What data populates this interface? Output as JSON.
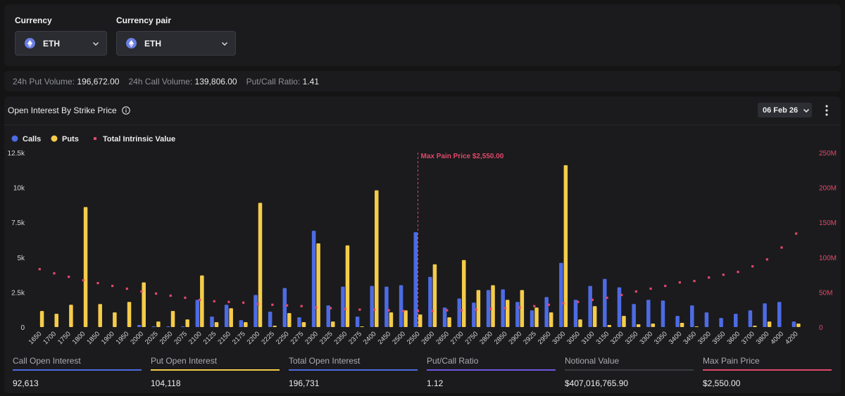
{
  "filters": {
    "currency": {
      "label": "Currency",
      "value": "ETH",
      "icon": "ethereum-icon"
    },
    "currency_pair": {
      "label": "Currency pair",
      "value": "ETH",
      "icon": "ethereum-icon"
    }
  },
  "stats": [
    {
      "label": "24h Put Volume:",
      "value": "196,672.00"
    },
    {
      "label": "24h Call Volume:",
      "value": "139,806.00"
    },
    {
      "label": "Put/Call Ratio:",
      "value": "1.41"
    }
  ],
  "panel": {
    "title": "Open Interest By Strike Price",
    "date": "06 Feb 26"
  },
  "colors": {
    "calls": "#4d6be3",
    "puts": "#f5cc4a",
    "intrinsic": "#e2476a",
    "max_pain": "#e2476a"
  },
  "chart_data": {
    "type": "bar",
    "legend": [
      "Calls",
      "Puts",
      "Total Intrinsic Value"
    ],
    "legend_position": "top-left",
    "categories": [
      "1650",
      "1700",
      "1750",
      "1800",
      "1850",
      "1900",
      "1950",
      "2000",
      "2025",
      "2050",
      "2075",
      "2100",
      "2125",
      "2150",
      "2175",
      "2200",
      "2225",
      "2250",
      "2275",
      "2300",
      "2325",
      "2350",
      "2375",
      "2400",
      "2450",
      "2500",
      "2550",
      "2600",
      "2650",
      "2700",
      "2750",
      "2800",
      "2850",
      "2900",
      "2925",
      "2950",
      "3000",
      "3050",
      "3100",
      "3150",
      "3200",
      "3250",
      "3300",
      "3350",
      "3400",
      "3450",
      "3500",
      "3550",
      "3600",
      "3700",
      "3800",
      "4000",
      "4200"
    ],
    "series": [
      {
        "name": "Calls",
        "axis": "left",
        "values": [
          0,
          0,
          0,
          0,
          0,
          0,
          0,
          150,
          50,
          50,
          50,
          1950,
          750,
          1600,
          500,
          2300,
          1100,
          2800,
          700,
          6900,
          1550,
          2900,
          750,
          2950,
          2900,
          3000,
          6800,
          3600,
          1400,
          2050,
          1750,
          2650,
          2700,
          1800,
          1200,
          2150,
          4600,
          1950,
          2950,
          3450,
          2850,
          1650,
          1950,
          1900,
          800,
          1550,
          1050,
          650,
          950,
          1200,
          1700,
          1800,
          400
        ]
      },
      {
        "name": "Puts",
        "axis": "left",
        "values": [
          1150,
          950,
          1600,
          8600,
          1650,
          1050,
          1800,
          3200,
          400,
          1150,
          550,
          3700,
          350,
          1350,
          350,
          8900,
          100,
          1000,
          350,
          6000,
          400,
          5850,
          50,
          9800,
          1050,
          1200,
          900,
          4500,
          700,
          4800,
          2650,
          3000,
          1950,
          2650,
          1400,
          1050,
          11600,
          550,
          1500,
          150,
          800,
          200,
          250,
          0,
          300,
          50,
          0,
          0,
          0,
          100,
          400,
          0,
          250
        ]
      },
      {
        "name": "Total Intrinsic Value",
        "axis": "right",
        "values": [
          83000000,
          77000000,
          72000000,
          67000000,
          63000000,
          59000000,
          55000000,
          51000000,
          48000000,
          45000000,
          42000000,
          39000000,
          37000000,
          36000000,
          35000000,
          33000000,
          32000000,
          31000000,
          30000000,
          28000000,
          27000000,
          26000000,
          25000000,
          25000000,
          24000000,
          23000000,
          23000000,
          23000000,
          24000000,
          24000000,
          25000000,
          26000000,
          27000000,
          28000000,
          30000000,
          32000000,
          34000000,
          36000000,
          39000000,
          42000000,
          46000000,
          51000000,
          55000000,
          59000000,
          64000000,
          66000000,
          71000000,
          75000000,
          79000000,
          87000000,
          97000000,
          114000000,
          134000000
        ]
      }
    ],
    "y_left": {
      "min": 0,
      "max": 12500,
      "ticks": [
        "0",
        "2.5k",
        "5k",
        "7.5k",
        "10k",
        "12.5k"
      ]
    },
    "y_right": {
      "min": 0,
      "max": 250000000,
      "ticks": [
        "0",
        "50M",
        "100M",
        "150M",
        "200M",
        "250M"
      ]
    },
    "annotations": [
      {
        "type": "vertical-line",
        "x": "2550",
        "label": "Max Pain Price $2,550.00"
      }
    ],
    "grid": false
  },
  "summary": [
    {
      "label": "Call Open Interest",
      "value": "92,613",
      "color": "#4d6be3"
    },
    {
      "label": "Put Open Interest",
      "value": "104,118",
      "color": "#f5cc4a"
    },
    {
      "label": "Total Open Interest",
      "value": "196,731",
      "color": "#4d6be3"
    },
    {
      "label": "Put/Call Ratio",
      "value": "1.12",
      "color": "#6c57e0"
    },
    {
      "label": "Notional Value",
      "value": "$407,016,765.90",
      "color": "#3a3b3f"
    },
    {
      "label": "Max Pain Price",
      "value": "$2,550.00",
      "color": "#e2476a"
    }
  ]
}
